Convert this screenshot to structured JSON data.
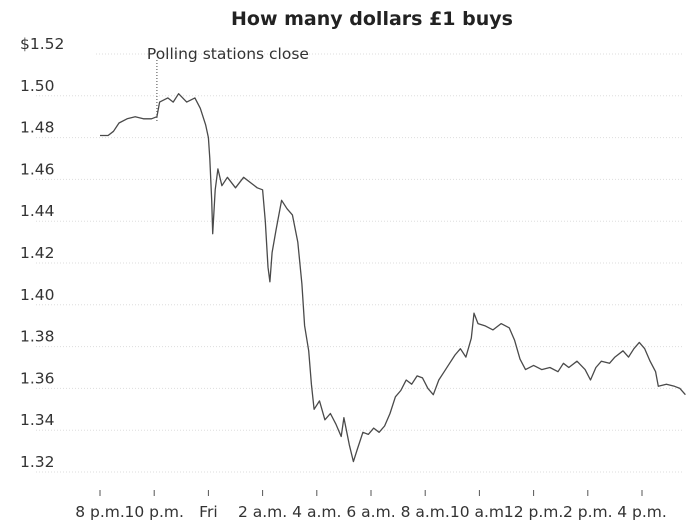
{
  "chart_data": {
    "type": "line",
    "title": "How many dollars £1 buys",
    "y_ticks": [
      {
        "value": 1.52,
        "label": "$1.52"
      },
      {
        "value": 1.5,
        "label": "1.50"
      },
      {
        "value": 1.48,
        "label": "1.48"
      },
      {
        "value": 1.46,
        "label": "1.46"
      },
      {
        "value": 1.44,
        "label": "1.44"
      },
      {
        "value": 1.42,
        "label": "1.42"
      },
      {
        "value": 1.4,
        "label": "1.40"
      },
      {
        "value": 1.38,
        "label": "1.38"
      },
      {
        "value": 1.36,
        "label": "1.36"
      },
      {
        "value": 1.34,
        "label": "1.34"
      },
      {
        "value": 1.32,
        "label": "1.32"
      }
    ],
    "ylim": [
      1.31,
      1.525
    ],
    "xlim": [
      20,
      43
    ],
    "x_ticks": [
      {
        "value": 20,
        "label": "8 p.m."
      },
      {
        "value": 22,
        "label": "10 p.m."
      },
      {
        "value": 24,
        "label": "Fri"
      },
      {
        "value": 26,
        "label": "2 a.m."
      },
      {
        "value": 28,
        "label": "4 a.m."
      },
      {
        "value": 30,
        "label": "6 a.m."
      },
      {
        "value": 32,
        "label": "8 a.m."
      },
      {
        "value": 34,
        "label": "10 a.m."
      },
      {
        "value": 36,
        "label": "12 p.m."
      },
      {
        "value": 38,
        "label": "2 p.m."
      },
      {
        "value": 40,
        "label": "4 p.m."
      }
    ],
    "annotation": {
      "x": 22.1,
      "y": 1.487,
      "text": "Polling stations close"
    },
    "series": [
      {
        "color": "#4a4a4a",
        "points": [
          [
            20.0,
            1.481
          ],
          [
            20.3,
            1.481
          ],
          [
            20.5,
            1.483
          ],
          [
            20.7,
            1.487
          ],
          [
            21.0,
            1.489
          ],
          [
            21.3,
            1.49
          ],
          [
            21.6,
            1.489
          ],
          [
            21.9,
            1.489
          ],
          [
            22.1,
            1.49
          ],
          [
            22.2,
            1.497
          ],
          [
            22.5,
            1.499
          ],
          [
            22.7,
            1.497
          ],
          [
            22.9,
            1.501
          ],
          [
            23.2,
            1.497
          ],
          [
            23.5,
            1.499
          ],
          [
            23.7,
            1.494
          ],
          [
            23.9,
            1.486
          ],
          [
            24.0,
            1.48
          ],
          [
            24.05,
            1.47
          ],
          [
            24.12,
            1.45
          ],
          [
            24.16,
            1.434
          ],
          [
            24.25,
            1.455
          ],
          [
            24.35,
            1.465
          ],
          [
            24.5,
            1.457
          ],
          [
            24.7,
            1.461
          ],
          [
            25.0,
            1.456
          ],
          [
            25.3,
            1.461
          ],
          [
            25.6,
            1.458
          ],
          [
            25.8,
            1.456
          ],
          [
            26.0,
            1.455
          ],
          [
            26.1,
            1.44
          ],
          [
            26.2,
            1.418
          ],
          [
            26.27,
            1.411
          ],
          [
            26.35,
            1.425
          ],
          [
            26.5,
            1.436
          ],
          [
            26.7,
            1.45
          ],
          [
            26.9,
            1.446
          ],
          [
            27.1,
            1.443
          ],
          [
            27.3,
            1.43
          ],
          [
            27.45,
            1.41
          ],
          [
            27.55,
            1.39
          ],
          [
            27.7,
            1.378
          ],
          [
            27.8,
            1.362
          ],
          [
            27.9,
            1.35
          ],
          [
            28.1,
            1.354
          ],
          [
            28.3,
            1.345
          ],
          [
            28.5,
            1.348
          ],
          [
            28.7,
            1.343
          ],
          [
            28.9,
            1.337
          ],
          [
            29.0,
            1.346
          ],
          [
            29.2,
            1.333
          ],
          [
            29.35,
            1.325
          ],
          [
            29.5,
            1.331
          ],
          [
            29.7,
            1.339
          ],
          [
            29.9,
            1.338
          ],
          [
            30.1,
            1.341
          ],
          [
            30.3,
            1.339
          ],
          [
            30.5,
            1.342
          ],
          [
            30.7,
            1.348
          ],
          [
            30.9,
            1.356
          ],
          [
            31.1,
            1.359
          ],
          [
            31.3,
            1.364
          ],
          [
            31.5,
            1.362
          ],
          [
            31.7,
            1.366
          ],
          [
            31.9,
            1.365
          ],
          [
            32.1,
            1.36
          ],
          [
            32.3,
            1.357
          ],
          [
            32.5,
            1.364
          ],
          [
            32.7,
            1.368
          ],
          [
            32.9,
            1.372
          ],
          [
            33.1,
            1.376
          ],
          [
            33.3,
            1.379
          ],
          [
            33.5,
            1.375
          ],
          [
            33.7,
            1.384
          ],
          [
            33.8,
            1.396
          ],
          [
            33.95,
            1.391
          ],
          [
            34.2,
            1.39
          ],
          [
            34.5,
            1.388
          ],
          [
            34.8,
            1.391
          ],
          [
            35.1,
            1.389
          ],
          [
            35.3,
            1.383
          ],
          [
            35.5,
            1.374
          ],
          [
            35.7,
            1.369
          ],
          [
            36.0,
            1.371
          ],
          [
            36.3,
            1.369
          ],
          [
            36.6,
            1.37
          ],
          [
            36.9,
            1.368
          ],
          [
            37.1,
            1.372
          ],
          [
            37.3,
            1.37
          ],
          [
            37.6,
            1.373
          ],
          [
            37.9,
            1.369
          ],
          [
            38.1,
            1.364
          ],
          [
            38.3,
            1.37
          ],
          [
            38.5,
            1.373
          ],
          [
            38.8,
            1.372
          ],
          [
            39.0,
            1.375
          ],
          [
            39.3,
            1.378
          ],
          [
            39.5,
            1.375
          ],
          [
            39.7,
            1.379
          ],
          [
            39.9,
            1.382
          ],
          [
            40.1,
            1.379
          ],
          [
            40.3,
            1.373
          ],
          [
            40.5,
            1.368
          ],
          [
            40.6,
            1.361
          ],
          [
            40.9,
            1.362
          ],
          [
            41.2,
            1.361
          ],
          [
            41.4,
            1.36
          ],
          [
            41.6,
            1.357
          ]
        ]
      }
    ]
  }
}
